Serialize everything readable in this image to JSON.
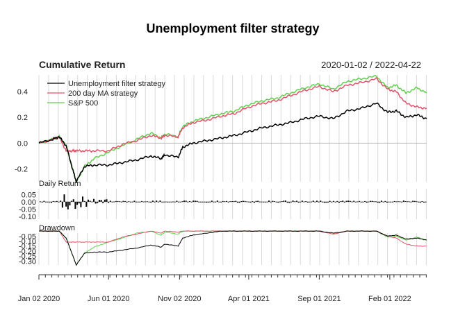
{
  "chart_data": {
    "type": "line",
    "title": "Unemployment filter strategy",
    "subtitle": "Cumulative Return",
    "date_range": "2020-01-02 / 2022-04-22",
    "x_ticks": [
      "Jan 02 2020",
      "Jun 01 2020",
      "Nov 02 2020",
      "Apr 01 2021",
      "Sep 01 2021",
      "Feb 01 2022"
    ],
    "x": [
      "2020-01-02",
      "2020-02-01",
      "2020-02-15",
      "2020-03-01",
      "2020-03-15",
      "2020-03-23",
      "2020-04-10",
      "2020-05-01",
      "2020-06-01",
      "2020-07-01",
      "2020-08-01",
      "2020-09-01",
      "2020-09-23",
      "2020-10-01",
      "2020-10-30",
      "2020-11-09",
      "2020-12-01",
      "2021-01-01",
      "2021-02-01",
      "2021-03-01",
      "2021-04-01",
      "2021-05-01",
      "2021-06-01",
      "2021-07-01",
      "2021-08-01",
      "2021-09-01",
      "2021-10-01",
      "2021-11-01",
      "2021-12-01",
      "2022-01-03",
      "2022-01-27",
      "2022-02-15",
      "2022-03-08",
      "2022-04-01",
      "2022-04-22"
    ],
    "series": [
      {
        "name": "Unemployment filter strategy",
        "color": "#000000",
        "values": [
          0.0,
          0.03,
          0.05,
          -0.02,
          -0.2,
          -0.3,
          -0.18,
          -0.17,
          -0.17,
          -0.15,
          -0.13,
          -0.1,
          -0.12,
          -0.09,
          -0.11,
          -0.03,
          0.0,
          0.02,
          0.04,
          0.06,
          0.09,
          0.12,
          0.14,
          0.16,
          0.19,
          0.21,
          0.19,
          0.25,
          0.27,
          0.31,
          0.24,
          0.25,
          0.2,
          0.22,
          0.19
        ]
      },
      {
        "name": "200 day MA strategy",
        "color": "#DF536B",
        "values": [
          0.0,
          0.03,
          0.05,
          -0.06,
          -0.06,
          -0.06,
          -0.06,
          -0.06,
          -0.06,
          -0.01,
          0.02,
          0.06,
          0.04,
          0.06,
          0.05,
          0.12,
          0.16,
          0.18,
          0.21,
          0.23,
          0.28,
          0.31,
          0.33,
          0.37,
          0.41,
          0.44,
          0.4,
          0.45,
          0.47,
          0.5,
          0.42,
          0.4,
          0.31,
          0.28,
          0.27
        ]
      },
      {
        "name": "S&P 500",
        "color": "#61D04F",
        "values": [
          0.0,
          0.03,
          0.05,
          -0.02,
          -0.2,
          -0.3,
          -0.18,
          -0.12,
          -0.07,
          -0.02,
          0.03,
          0.08,
          0.04,
          0.07,
          0.05,
          0.13,
          0.17,
          0.2,
          0.23,
          0.25,
          0.3,
          0.33,
          0.35,
          0.39,
          0.43,
          0.46,
          0.42,
          0.48,
          0.5,
          0.52,
          0.43,
          0.45,
          0.39,
          0.43,
          0.39
        ]
      }
    ],
    "y_ticks": [
      "0.4",
      "0.2",
      "0.0",
      "-0.2"
    ],
    "ylim": [
      -0.3,
      0.53
    ],
    "legend": "top-left",
    "grid": true,
    "daily_return": {
      "label": "Daily Return",
      "y_ticks": [
        "0.05",
        "0.00",
        "-0.05",
        "-0.10"
      ],
      "ylim": [
        -0.12,
        0.09
      ]
    },
    "drawdown": {
      "label": "Drawdown",
      "y_ticks": [
        "-0.05",
        "-0.10",
        "-0.15",
        "-0.20",
        "-0.25",
        "-0.30"
      ],
      "ylim": [
        -0.34,
        -0.02
      ],
      "series": [
        {
          "name": "Unemployment filter strategy",
          "color": "#000000",
          "values": [
            0.0,
            0.0,
            0.0,
            -0.07,
            -0.24,
            -0.34,
            -0.22,
            -0.21,
            -0.21,
            -0.19,
            -0.17,
            -0.14,
            -0.16,
            -0.13,
            -0.15,
            -0.07,
            -0.04,
            -0.02,
            0.0,
            0.0,
            0.0,
            0.0,
            0.0,
            0.0,
            0.0,
            0.0,
            -0.02,
            0.0,
            0.0,
            0.0,
            -0.05,
            -0.04,
            -0.08,
            -0.07,
            -0.09
          ]
        },
        {
          "name": "200 day MA strategy",
          "color": "#DF536B",
          "values": [
            0.0,
            0.0,
            0.0,
            -0.11,
            -0.11,
            -0.11,
            -0.11,
            -0.11,
            -0.11,
            -0.06,
            -0.03,
            0.0,
            -0.02,
            0.0,
            -0.01,
            0.0,
            0.0,
            0.0,
            0.0,
            0.0,
            0.0,
            0.0,
            0.0,
            0.0,
            0.0,
            0.0,
            -0.03,
            0.0,
            0.0,
            0.0,
            -0.05,
            -0.07,
            -0.13,
            -0.15,
            -0.15
          ]
        },
        {
          "name": "S&P 500",
          "color": "#61D04F",
          "values": [
            0.0,
            0.0,
            0.0,
            -0.07,
            -0.24,
            -0.34,
            -0.22,
            -0.16,
            -0.11,
            -0.07,
            -0.02,
            0.0,
            -0.04,
            -0.01,
            -0.03,
            0.0,
            0.0,
            0.0,
            0.0,
            0.0,
            0.0,
            0.0,
            0.0,
            0.0,
            0.0,
            0.0,
            -0.03,
            0.0,
            0.0,
            0.0,
            -0.06,
            -0.05,
            -0.09,
            -0.06,
            -0.09
          ]
        }
      ]
    }
  }
}
